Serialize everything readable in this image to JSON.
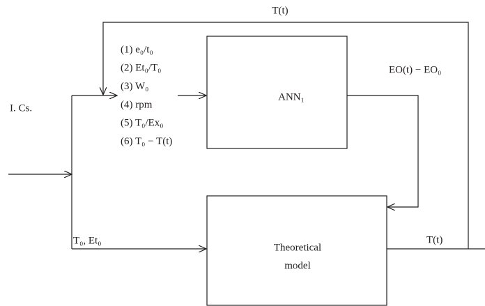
{
  "feedback_label": "T(t)",
  "initial_conditions": "I. Cs.",
  "ann": {
    "label": "ANN₁",
    "inputs": [
      "(1) e₀/t₀",
      "(2) Et₀/T₀",
      "(3) W₀",
      "(4) rpm",
      "(5) T₀/Ex₀",
      "(6) T₀ − T(t)"
    ],
    "output": "EO(t) − EO₀"
  },
  "theoretical": {
    "label": [
      "Theoretical",
      "model"
    ],
    "input": "T₀, Et₀",
    "output": "T(t)"
  }
}
